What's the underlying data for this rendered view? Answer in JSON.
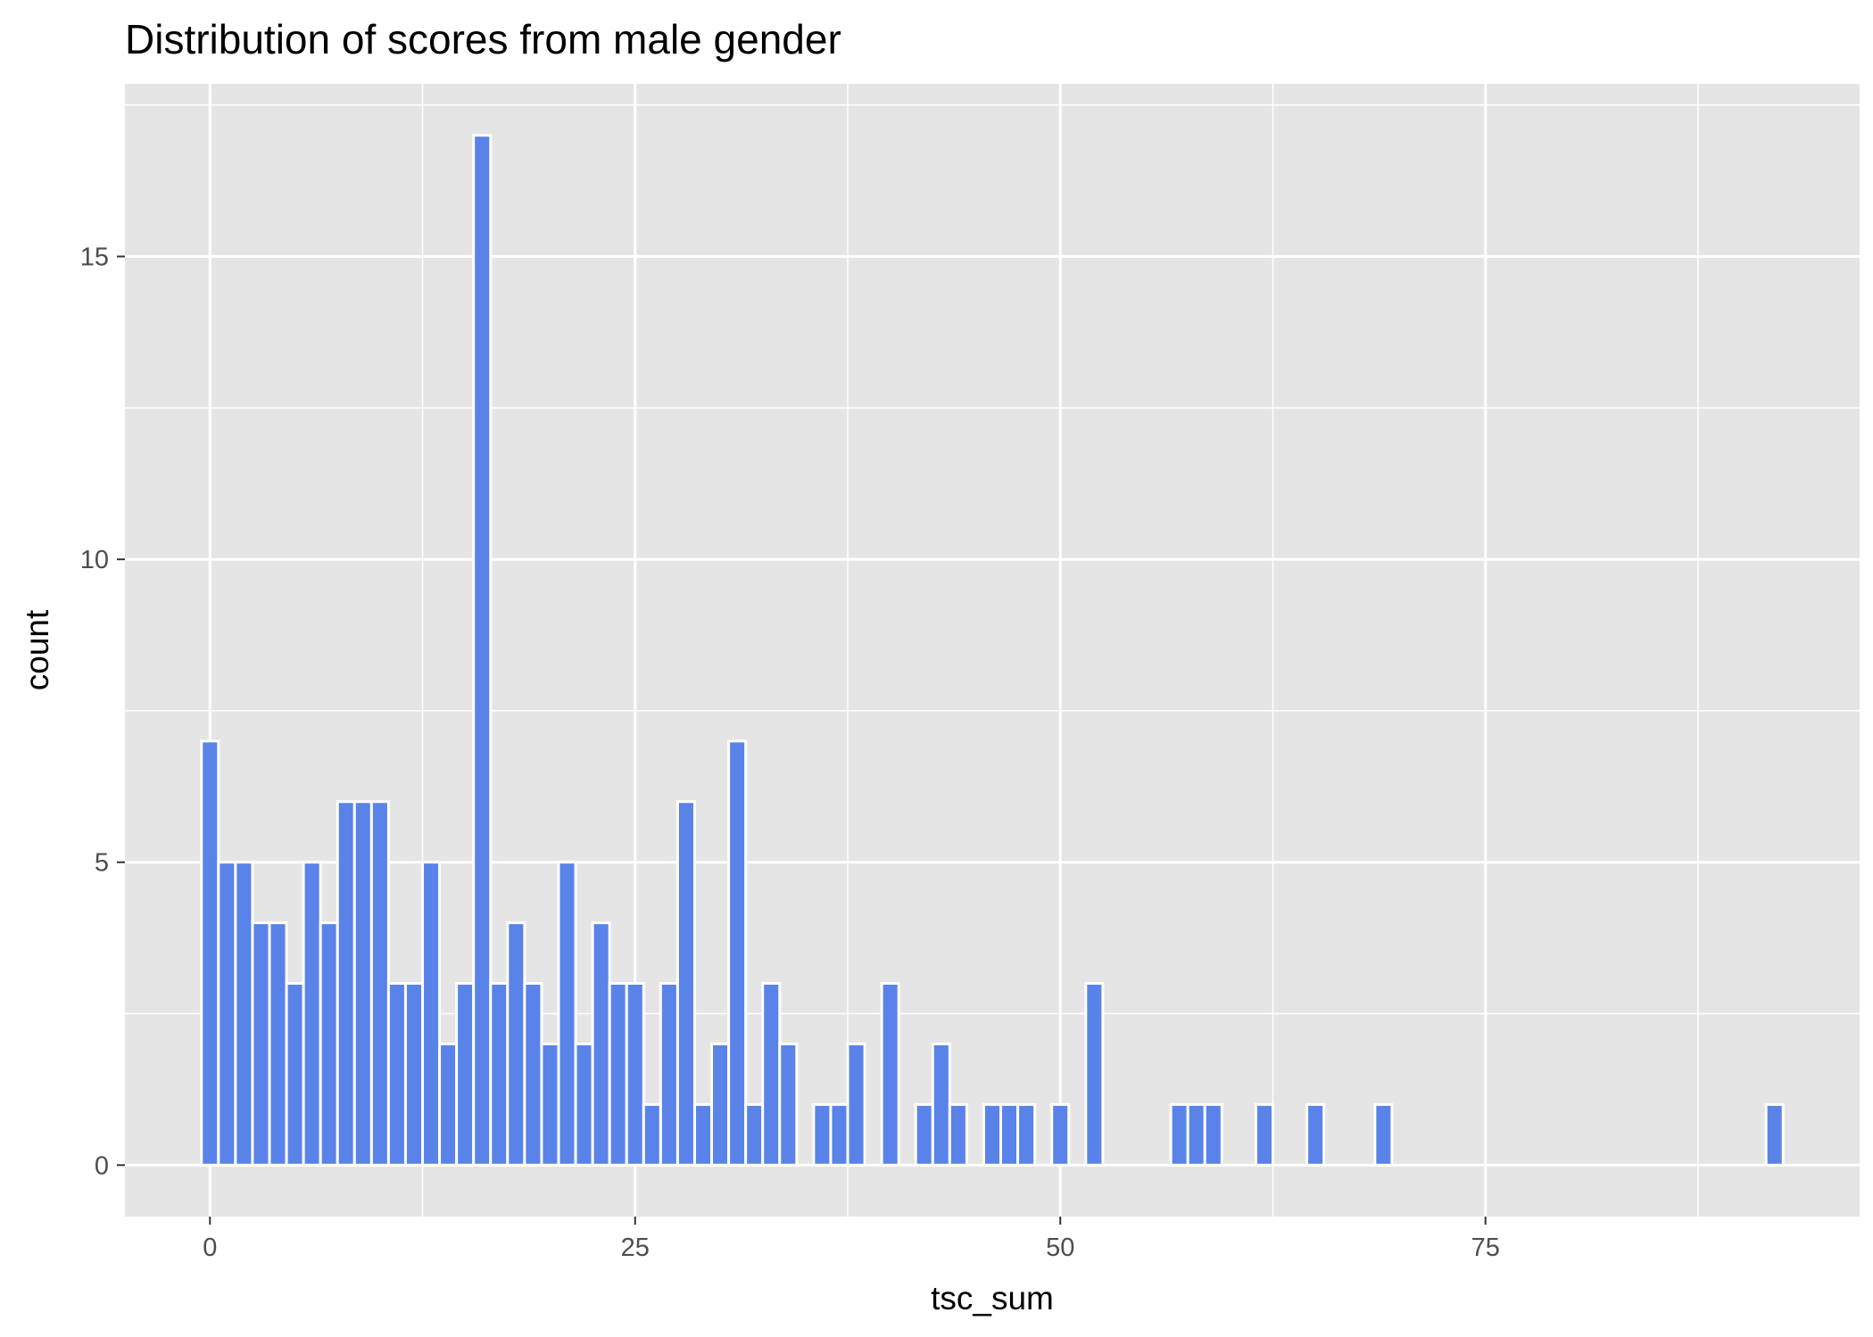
{
  "chart_data": {
    "type": "bar",
    "title": "Distribution of scores from male gender",
    "xlabel": "tsc_sum",
    "ylabel": "count",
    "xlim": [
      -5,
      97
    ],
    "ylim": [
      -0.85,
      17.85
    ],
    "x_ticks": [
      0,
      25,
      50,
      75
    ],
    "y_ticks": [
      0,
      5,
      10,
      15
    ],
    "grid": true,
    "legend": "none",
    "bar_color": "#5983E8",
    "bar_edge_color": "#FFFFFF",
    "panel_color": "#E5E5E5",
    "x": [
      0,
      1,
      2,
      3,
      4,
      5,
      6,
      7,
      8,
      9,
      10,
      11,
      12,
      13,
      14,
      15,
      16,
      17,
      18,
      19,
      20,
      21,
      22,
      23,
      24,
      25,
      26,
      27,
      28,
      29,
      30,
      31,
      32,
      33,
      34,
      36,
      37,
      38,
      40,
      42,
      43,
      44,
      46,
      47,
      48,
      50,
      52,
      57,
      58,
      59,
      62,
      65,
      69,
      92
    ],
    "values": [
      7,
      5,
      5,
      4,
      4,
      3,
      5,
      4,
      6,
      6,
      6,
      3,
      3,
      5,
      2,
      3,
      17,
      3,
      4,
      3,
      2,
      5,
      2,
      4,
      3,
      3,
      1,
      3,
      6,
      1,
      2,
      7,
      1,
      3,
      2,
      1,
      1,
      2,
      3,
      1,
      2,
      1,
      1,
      1,
      1,
      1,
      3,
      1,
      1,
      1,
      1,
      1,
      1,
      1
    ]
  }
}
